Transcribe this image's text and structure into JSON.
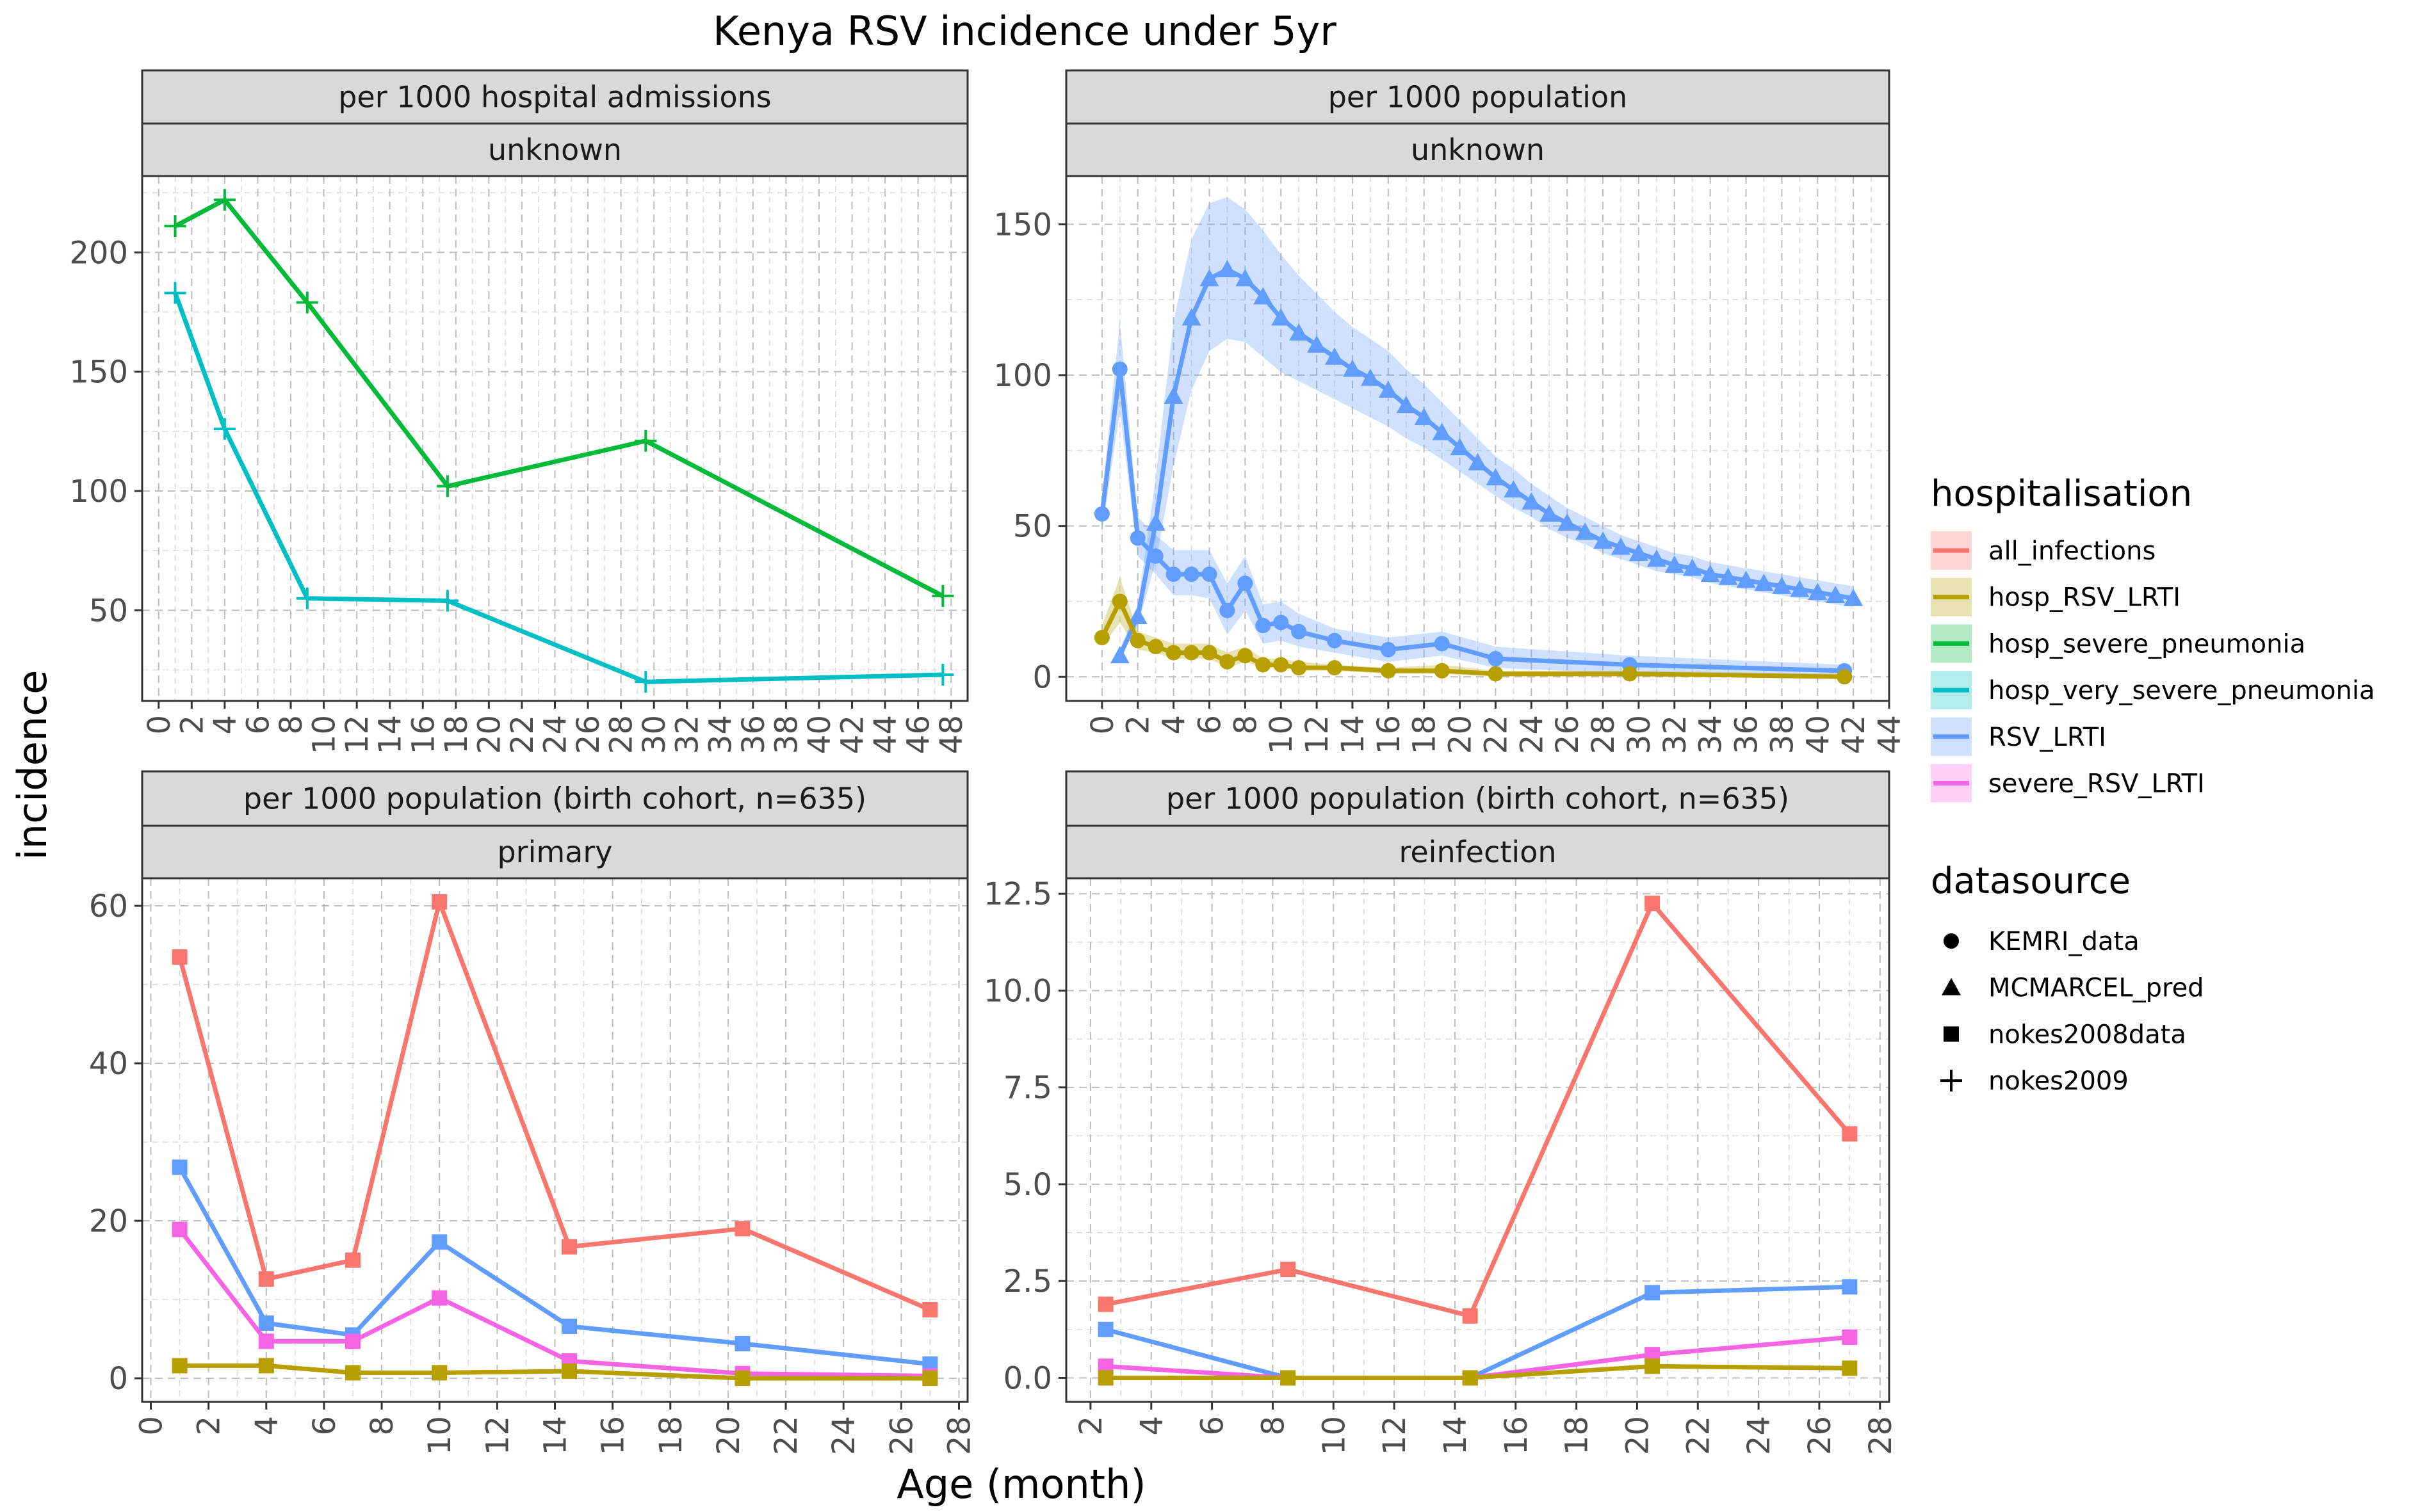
{
  "title": "Kenya RSV incidence under 5yr",
  "xlabel": "Age (month)",
  "ylabel": "incidence",
  "colors": {
    "all_infections": "#F8766D",
    "hosp_RSV_LRTI": "#B79F00",
    "hosp_severe_pneumonia": "#00BA38",
    "hosp_very_severe_pneumonia": "#00BFC4",
    "RSV_LRTI": "#619CFF",
    "severe_RSV_LRTI": "#F564E3"
  },
  "legend": {
    "hospitalisation": {
      "title": "hospitalisation",
      "items": [
        "all_infections",
        "hosp_RSV_LRTI",
        "hosp_severe_pneumonia",
        "hosp_very_severe_pneumonia",
        "RSV_LRTI",
        "severe_RSV_LRTI"
      ]
    },
    "datasource": {
      "title": "datasource",
      "items": [
        {
          "label": "KEMRI_data",
          "shape": "circle"
        },
        {
          "label": "MCMARCEL_pred",
          "shape": "triangle"
        },
        {
          "label": "nokes2008data",
          "shape": "square"
        },
        {
          "label": "nokes2009",
          "shape": "plus"
        }
      ]
    }
  },
  "chart_data": [
    {
      "type": "line",
      "strip_top": "per 1000 hospital admissions",
      "strip_bottom": "unknown",
      "xlim": [
        -1,
        49
      ],
      "ylim": [
        12,
        232
      ],
      "xticks": [
        0,
        2,
        4,
        6,
        8,
        10,
        12,
        14,
        16,
        18,
        20,
        22,
        24,
        26,
        28,
        30,
        32,
        34,
        36,
        38,
        40,
        42,
        44,
        46,
        48
      ],
      "yticks": [
        50,
        100,
        150,
        200
      ],
      "series": [
        {
          "name": "hosp_severe_pneumonia",
          "shape": "plus",
          "x": [
            1,
            4,
            9,
            17.5,
            29.5,
            47.5
          ],
          "y": [
            211,
            222,
            179,
            102,
            121,
            56
          ]
        },
        {
          "name": "hosp_very_severe_pneumonia",
          "shape": "plus",
          "x": [
            1,
            4,
            9,
            17.5,
            29.5,
            47.5
          ],
          "y": [
            183,
            126,
            55,
            54,
            20,
            23
          ]
        }
      ]
    },
    {
      "type": "line",
      "strip_top": "per 1000 population",
      "strip_bottom": "unknown",
      "xlim": [
        -2,
        44
      ],
      "ylim": [
        -8,
        166
      ],
      "xticks": [
        0,
        2,
        4,
        6,
        8,
        10,
        12,
        14,
        16,
        18,
        20,
        22,
        24,
        26,
        28,
        30,
        32,
        34,
        36,
        38,
        40,
        42,
        44
      ],
      "yticks": [
        0,
        50,
        100,
        150
      ],
      "series": [
        {
          "name": "RSV_LRTI",
          "shape": "triangle",
          "x": [
            1,
            2,
            3,
            4,
            5,
            6,
            7,
            8,
            9,
            10,
            11,
            12,
            13,
            14,
            15,
            16,
            17,
            18,
            19,
            20,
            21,
            22,
            23,
            24,
            25,
            26,
            27,
            28,
            29,
            30,
            31,
            32,
            33,
            34,
            35,
            36,
            37,
            38,
            39,
            40,
            41,
            42
          ],
          "y": [
            7,
            20,
            51,
            93,
            119,
            132,
            135,
            132,
            126,
            119,
            114,
            110,
            106,
            102,
            99,
            95,
            90,
            86,
            81,
            76,
            71,
            66,
            62,
            58,
            54,
            51,
            48,
            45,
            43,
            41,
            39,
            37,
            36,
            34,
            33,
            32,
            31,
            30,
            29,
            28,
            27,
            26
          ],
          "lower": [
            6,
            17,
            38,
            70,
            95,
            108,
            112,
            111,
            106,
            101,
            98,
            95,
            92,
            89,
            86,
            83,
            79,
            76,
            72,
            68,
            64,
            60,
            56,
            53,
            49,
            46,
            44,
            41,
            39,
            37,
            35,
            34,
            33,
            31,
            30,
            29,
            28,
            27,
            26,
            25,
            24,
            23
          ],
          "upper": [
            9,
            24,
            66,
            118,
            145,
            157,
            159,
            155,
            148,
            140,
            133,
            127,
            121,
            116,
            112,
            108,
            102,
            97,
            91,
            85,
            79,
            73,
            69,
            64,
            60,
            56,
            53,
            50,
            47,
            45,
            43,
            41,
            40,
            38,
            37,
            36,
            35,
            34,
            33,
            32,
            31,
            30
          ]
        },
        {
          "name": "RSV_LRTI",
          "shape": "circle",
          "x": [
            0,
            1,
            2,
            3,
            4,
            5,
            6,
            7,
            8,
            9,
            10,
            11,
            13,
            16,
            19,
            22,
            29.5,
            41.5
          ],
          "y": [
            54,
            102,
            46,
            40,
            34,
            34,
            34,
            22,
            31,
            17,
            18,
            15,
            12,
            9,
            11,
            6,
            4,
            2
          ],
          "lower": [
            48,
            88,
            40,
            34,
            27,
            27,
            26,
            14,
            22,
            11,
            12,
            10,
            8,
            5,
            7,
            3,
            1,
            0
          ],
          "upper": [
            60,
            118,
            53,
            47,
            42,
            42,
            42,
            31,
            40,
            24,
            25,
            21,
            16,
            13,
            15,
            10,
            7,
            4
          ]
        },
        {
          "name": "hosp_RSV_LRTI",
          "shape": "circle",
          "x": [
            0,
            1,
            2,
            3,
            4,
            5,
            6,
            7,
            8,
            9,
            10,
            11,
            13,
            16,
            19,
            22,
            29.5,
            41.5
          ],
          "y": [
            13,
            25,
            12,
            10,
            8,
            8,
            8,
            5,
            7,
            4,
            4,
            3,
            3,
            2,
            2,
            1,
            1,
            0
          ],
          "lower": [
            10,
            18,
            9,
            8,
            6,
            6,
            6,
            3,
            5,
            3,
            3,
            2,
            2,
            1,
            1,
            0,
            0,
            0
          ],
          "upper": [
            17,
            33,
            15,
            13,
            11,
            11,
            11,
            8,
            10,
            6,
            6,
            5,
            4,
            3,
            4,
            2,
            2,
            1
          ]
        }
      ]
    },
    {
      "type": "line",
      "strip_top": "per 1000 population (birth cohort, n=635)",
      "strip_bottom": "primary",
      "xlim": [
        -0.3,
        28.3
      ],
      "ylim": [
        -3,
        63.5
      ],
      "xticks": [
        0,
        2,
        4,
        6,
        8,
        10,
        12,
        14,
        16,
        18,
        20,
        22,
        24,
        26,
        28
      ],
      "yticks": [
        0,
        20,
        40,
        60
      ],
      "series": [
        {
          "name": "all_infections",
          "shape": "square",
          "x": [
            1,
            4,
            7,
            10,
            14.5,
            20.5,
            27
          ],
          "y": [
            53.5,
            12.6,
            15,
            60.5,
            16.7,
            19,
            8.7
          ]
        },
        {
          "name": "RSV_LRTI",
          "shape": "square",
          "x": [
            1,
            4,
            7,
            10,
            14.5,
            20.5,
            27
          ],
          "y": [
            26.8,
            7,
            5.5,
            17.3,
            6.6,
            4.4,
            1.8
          ]
        },
        {
          "name": "severe_RSV_LRTI",
          "shape": "square",
          "x": [
            1,
            4,
            7,
            10,
            14.5,
            20.5,
            27
          ],
          "y": [
            18.9,
            4.7,
            4.7,
            10.2,
            2.2,
            0.6,
            0.3
          ]
        },
        {
          "name": "hosp_RSV_LRTI",
          "shape": "square",
          "x": [
            1,
            4,
            7,
            10,
            14.5,
            20.5,
            27
          ],
          "y": [
            1.6,
            1.6,
            0.7,
            0.7,
            0.9,
            0,
            0
          ]
        }
      ]
    },
    {
      "type": "line",
      "strip_top": "per 1000 population (birth cohort, n=635)",
      "strip_bottom": "reinfection",
      "xlim": [
        1.2,
        28.3
      ],
      "ylim": [
        -0.62,
        12.9
      ],
      "xticks": [
        2,
        4,
        6,
        8,
        10,
        12,
        14,
        16,
        18,
        20,
        22,
        24,
        26,
        28
      ],
      "yticks": [
        0.0,
        2.5,
        5.0,
        7.5,
        10.0,
        12.5
      ],
      "series": [
        {
          "name": "all_infections",
          "shape": "square",
          "x": [
            2.5,
            8.5,
            14.5,
            20.5,
            27
          ],
          "y": [
            1.9,
            2.8,
            1.6,
            12.25,
            6.3
          ]
        },
        {
          "name": "RSV_LRTI",
          "shape": "square",
          "x": [
            2.5,
            8.5,
            14.5,
            20.5,
            27
          ],
          "y": [
            1.25,
            0,
            0,
            2.2,
            2.35
          ]
        },
        {
          "name": "severe_RSV_LRTI",
          "shape": "square",
          "x": [
            2.5,
            8.5,
            14.5,
            20.5,
            27
          ],
          "y": [
            0.3,
            0,
            0,
            0.6,
            1.05
          ]
        },
        {
          "name": "hosp_RSV_LRTI",
          "shape": "square",
          "x": [
            2.5,
            8.5,
            14.5,
            20.5,
            27
          ],
          "y": [
            0,
            0,
            0,
            0.3,
            0.25
          ]
        }
      ]
    }
  ]
}
